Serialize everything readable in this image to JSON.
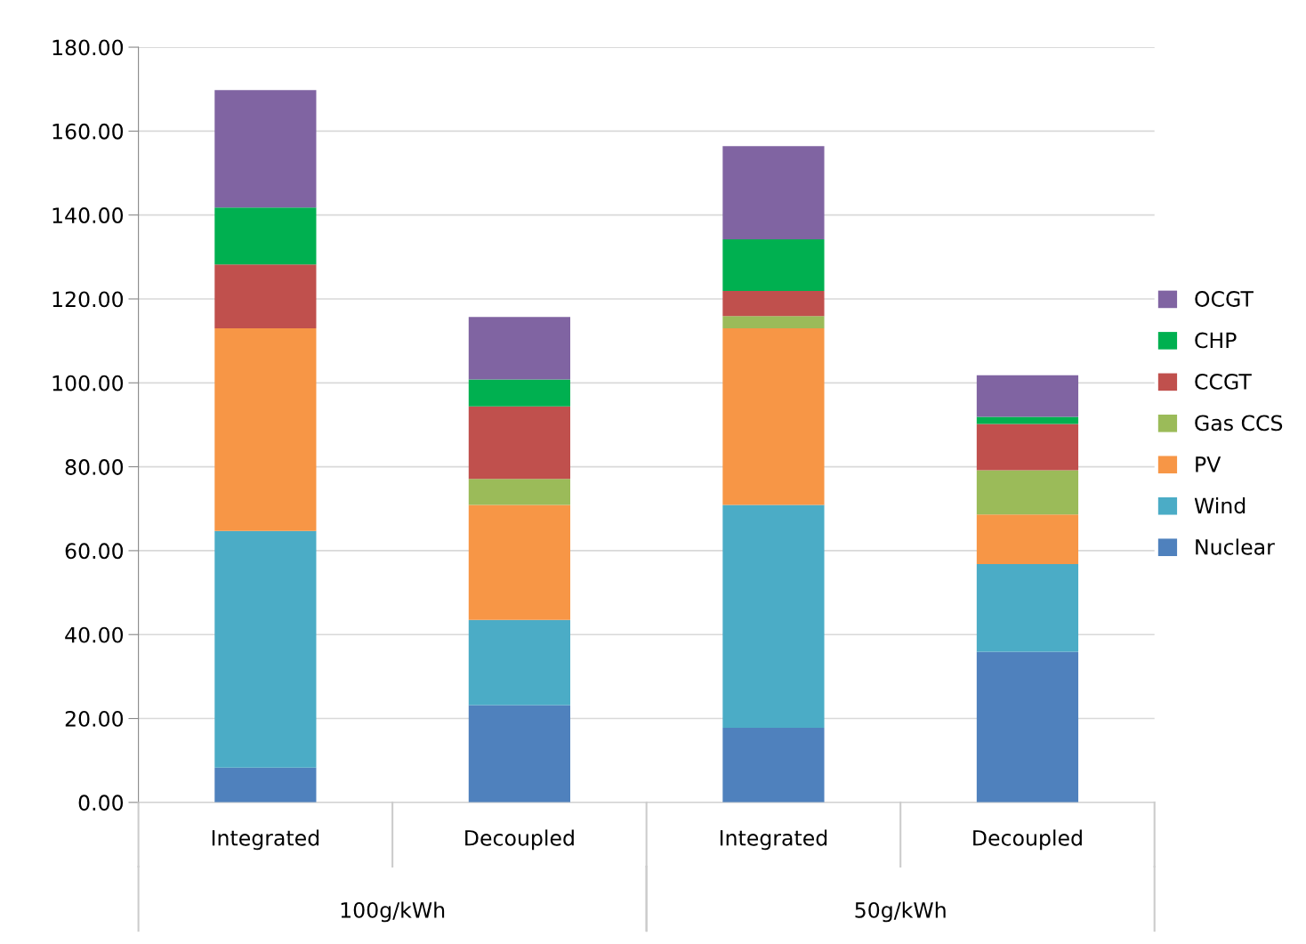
{
  "chart_data": {
    "type": "bar",
    "stacked": true,
    "categories": [
      "Integrated",
      "Decoupled",
      "Integrated",
      "Decoupled"
    ],
    "series": [
      {
        "name": "Nuclear",
        "color": "#4f81bd",
        "values": [
          8.3,
          23.2,
          17.8,
          35.9
        ]
      },
      {
        "name": "Wind",
        "color": "#4bacc6",
        "values": [
          56.4,
          20.3,
          53.1,
          20.9
        ]
      },
      {
        "name": "PV",
        "color": "#f79646",
        "values": [
          48.3,
          27.4,
          42.1,
          11.8
        ]
      },
      {
        "name": "Gas CCS",
        "color": "#9bbb59",
        "values": [
          0,
          6.2,
          2.9,
          10.6
        ]
      },
      {
        "name": "CCGT",
        "color": "#c0504d",
        "values": [
          15.2,
          17.3,
          6.0,
          11.0
        ]
      },
      {
        "name": "CHP",
        "color": "#00b050",
        "values": [
          13.6,
          6.4,
          12.3,
          1.7
        ]
      },
      {
        "name": "OCGT",
        "color": "#8064a2",
        "values": [
          28.0,
          14.9,
          22.2,
          9.9
        ]
      }
    ],
    "ylim": [
      0,
      180
    ],
    "yticks": [
      {
        "value": 0,
        "label": "0.00"
      },
      {
        "value": 20,
        "label": "20.00"
      },
      {
        "value": 40,
        "label": "40.00"
      },
      {
        "value": 60,
        "label": "60.00"
      },
      {
        "value": 80,
        "label": "80.00"
      },
      {
        "value": 100,
        "label": "100.00"
      },
      {
        "value": 120,
        "label": "120.00"
      },
      {
        "value": 140,
        "label": "140.00"
      },
      {
        "value": 160,
        "label": "160.00"
      },
      {
        "value": 180,
        "label": "180.00"
      }
    ],
    "annotations": [
      "100g/kWh",
      "50g/kWh"
    ],
    "grid": "y",
    "legend": "right"
  }
}
